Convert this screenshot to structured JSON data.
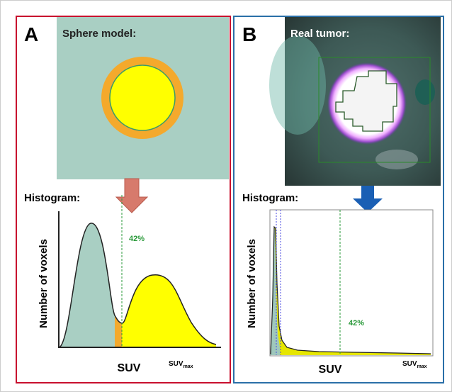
{
  "panels": [
    {
      "label": "A",
      "title": "Sphere model:",
      "histogram_title": "Histogram:",
      "threshold_label": "42%",
      "y_axis_label": "Number of voxels",
      "x_axis_label": "SUV",
      "x_max_label": {
        "main": "SUV",
        "sub": "max"
      }
    },
    {
      "label": "B",
      "title": "Real tumor:",
      "histogram_title": "Histogram:",
      "threshold_label": "42%",
      "y_axis_label": "Number of voxels",
      "x_axis_label": "SUV",
      "x_max_label": {
        "main": "SUV",
        "sub": "max"
      }
    }
  ]
}
